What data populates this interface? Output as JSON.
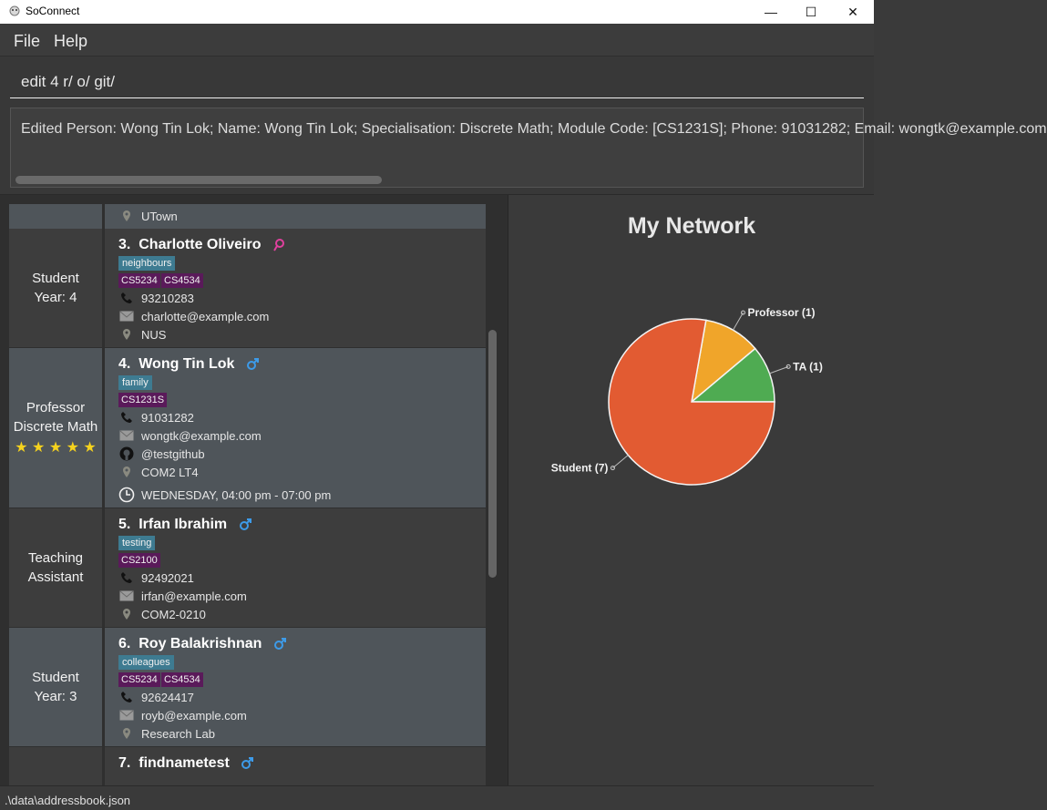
{
  "window": {
    "title": "SoConnect",
    "minimize": "—",
    "maximize": "☐",
    "close": "✕"
  },
  "menu": {
    "file": "File",
    "help": "Help"
  },
  "command": {
    "value": "edit 4 r/ o/ git/"
  },
  "result": {
    "text": "Edited Person: Wong Tin Lok; Name: Wong Tin Lok; Specialisation: Discrete Math; Module Code: [CS1231S]; Phone: 91031282; Email: wongtk@example.com"
  },
  "cards": {
    "c2": {
      "location": "UTown"
    },
    "c3": {
      "role": "Student",
      "detail": "Year: 4",
      "index": "3.",
      "name": "Charlotte Oliveiro",
      "tag": "neighbours",
      "modules": [
        "CS5234",
        "CS4534"
      ],
      "phone": "93210283",
      "email": "charlotte@example.com",
      "location": "NUS"
    },
    "c4": {
      "role": "Professor",
      "detail": "Discrete Math",
      "stars": "★ ★ ★ ★ ★",
      "index": "4.",
      "name": "Wong Tin Lok",
      "tag": "family",
      "modules": [
        "CS1231S"
      ],
      "phone": "91031282",
      "email": "wongtk@example.com",
      "github": "@testgithub",
      "location": "COM2 LT4",
      "timeslot": "WEDNESDAY, 04:00 pm - 07:00 pm"
    },
    "c5": {
      "role": "Teaching",
      "detail": "Assistant",
      "index": "5.",
      "name": "Irfan Ibrahim",
      "tag": "testing",
      "modules": [
        "CS2100"
      ],
      "phone": "92492021",
      "email": "irfan@example.com",
      "location": "COM2-0210"
    },
    "c6": {
      "role": "Student",
      "detail": "Year: 3",
      "index": "6.",
      "name": "Roy Balakrishnan",
      "tag": "colleagues",
      "modules": [
        "CS5234",
        "CS4534"
      ],
      "phone": "92624417",
      "email": "royb@example.com",
      "location": "Research Lab"
    },
    "c7": {
      "index": "7.",
      "name": "findnametest"
    }
  },
  "chart_data": {
    "type": "pie",
    "title": "My Network",
    "categories": [
      "Student",
      "Professor",
      "TA"
    ],
    "values": [
      7,
      1,
      1
    ],
    "labels": [
      "Student (7)",
      "Professor (1)",
      "TA (1)"
    ],
    "colors": [
      "#e25b32",
      "#f0a52a",
      "#4fab52"
    ]
  },
  "status": {
    "path": ".\\data\\addressbook.json"
  }
}
